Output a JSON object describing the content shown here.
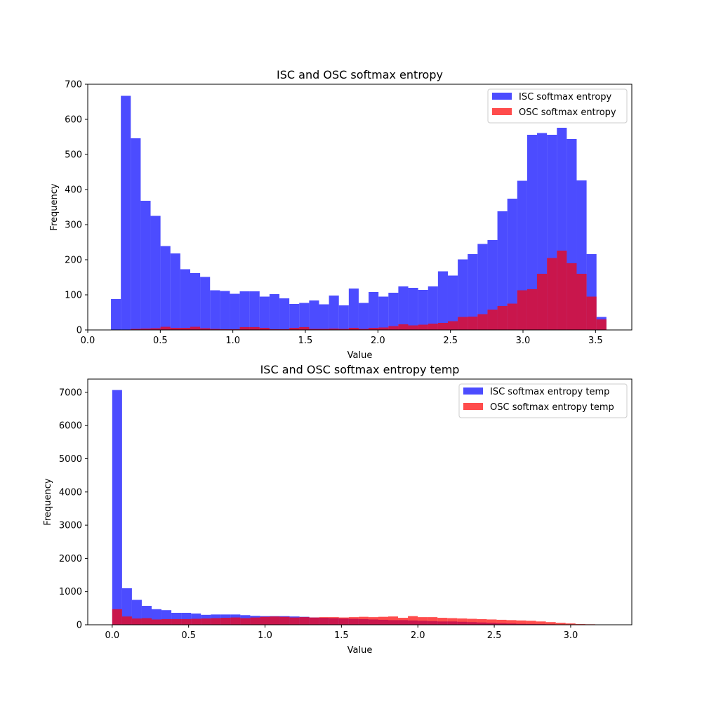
{
  "chart_data": [
    {
      "type": "histogram",
      "title": "ISC and OSC softmax entropy",
      "xlabel": "Value",
      "ylabel": "Frequency",
      "xlim": [
        0.0,
        3.75
      ],
      "ylim": [
        0,
        700
      ],
      "xticks": [
        "0.0",
        "0.5",
        "1.0",
        "1.5",
        "2.0",
        "2.5",
        "3.0",
        "3.5"
      ],
      "yticks": [
        "0",
        "100",
        "200",
        "300",
        "400",
        "500",
        "600",
        "700"
      ],
      "legend_position": "upper right",
      "series": [
        {
          "name": "ISC softmax entropy",
          "color": "#0000ff",
          "alpha": 0.7,
          "bin_start": 0.16,
          "bin_width": 0.0683,
          "values": [
            88,
            667,
            546,
            368,
            325,
            239,
            218,
            173,
            162,
            151,
            113,
            111,
            103,
            110,
            110,
            95,
            102,
            90,
            74,
            77,
            84,
            73,
            98,
            70,
            118,
            77,
            108,
            95,
            106,
            124,
            120,
            114,
            124,
            167,
            155,
            201,
            216,
            245,
            256,
            338,
            374,
            425,
            556,
            561,
            556,
            576,
            544,
            426,
            216,
            37
          ]
        },
        {
          "name": "OSC softmax entropy",
          "color": "#ff0000",
          "alpha": 0.7,
          "bin_start": 0.16,
          "bin_width": 0.0683,
          "values": [
            0,
            0,
            3,
            4,
            5,
            9,
            6,
            6,
            9,
            5,
            3,
            2,
            2,
            8,
            8,
            6,
            2,
            2,
            6,
            8,
            3,
            3,
            4,
            3,
            6,
            3,
            6,
            7,
            11,
            16,
            13,
            15,
            18,
            20,
            25,
            37,
            38,
            45,
            58,
            68,
            75,
            113,
            116,
            160,
            205,
            226,
            190,
            160,
            95,
            30
          ]
        }
      ]
    },
    {
      "type": "histogram",
      "title": "ISC and OSC softmax entropy temp",
      "xlabel": "Value",
      "ylabel": "Frequency",
      "xlim": [
        -0.16,
        3.4
      ],
      "ylim": [
        0,
        7400
      ],
      "xticks": [
        "0.0",
        "0.5",
        "1.0",
        "1.5",
        "2.0",
        "2.5",
        "3.0"
      ],
      "yticks": [
        "0",
        "1000",
        "2000",
        "3000",
        "4000",
        "5000",
        "6000",
        "7000"
      ],
      "legend_position": "upper right",
      "series": [
        {
          "name": "ISC softmax entropy temp",
          "color": "#0000ff",
          "alpha": 0.7,
          "bin_start": 0.0,
          "bin_width": 0.0645,
          "values": [
            7070,
            1100,
            750,
            570,
            470,
            440,
            360,
            360,
            340,
            300,
            310,
            310,
            310,
            290,
            270,
            260,
            260,
            260,
            250,
            240,
            220,
            210,
            200,
            190,
            180,
            170,
            160,
            150,
            140,
            140,
            130,
            120,
            110,
            100,
            100,
            90,
            80,
            70,
            60,
            50,
            40,
            30,
            25,
            20,
            15,
            10,
            8,
            5,
            3,
            2
          ]
        },
        {
          "name": "OSC softmax entropy temp",
          "color": "#ff0000",
          "alpha": 0.7,
          "bin_start": 0.0,
          "bin_width": 0.0645,
          "values": [
            470,
            250,
            190,
            200,
            160,
            170,
            170,
            170,
            180,
            190,
            200,
            210,
            220,
            200,
            220,
            240,
            250,
            240,
            220,
            230,
            220,
            230,
            230,
            220,
            230,
            240,
            230,
            240,
            250,
            210,
            260,
            230,
            230,
            210,
            200,
            190,
            180,
            170,
            160,
            150,
            140,
            130,
            120,
            100,
            80,
            60,
            40,
            20,
            15,
            10
          ]
        }
      ]
    }
  ]
}
